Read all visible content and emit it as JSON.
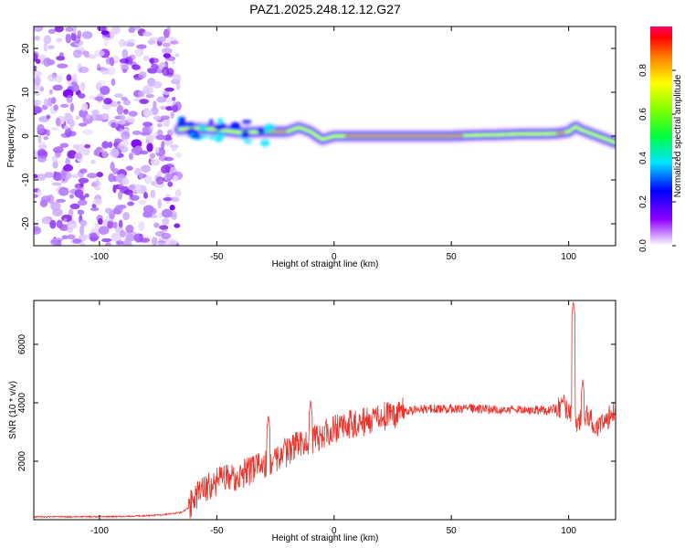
{
  "title": "PAZ1.2025.248.12.12.G27",
  "chart_data": [
    {
      "type": "heatmap",
      "title": "PAZ1.2025.248.12.12.G27",
      "xlabel": "Height of straight line (km)",
      "ylabel": "Frequency (Hz)",
      "xlim": [
        -128,
        120
      ],
      "ylim": [
        -25,
        25
      ],
      "xticks": [
        -100,
        -50,
        0,
        50,
        100
      ],
      "yticks": [
        -20,
        -10,
        0,
        10,
        20
      ],
      "noise_region_x": [
        -128,
        -66
      ],
      "signal_track": {
        "x": [
          -66,
          -60,
          -50,
          -40,
          -30,
          -20,
          -15,
          -10,
          -5,
          0,
          10,
          20,
          30,
          40,
          50,
          60,
          70,
          80,
          90,
          95,
          100,
          103,
          105,
          110,
          115,
          120
        ],
        "freq_hz": [
          1.5,
          1.8,
          1.5,
          0.8,
          1.0,
          1.0,
          2.0,
          1.0,
          -0.8,
          0,
          0,
          0,
          0,
          0,
          0,
          0.2,
          0.3,
          0.5,
          0.5,
          0.6,
          1.0,
          2.2,
          1.5,
          0.5,
          -0.5,
          -1.5
        ]
      },
      "colorbar": {
        "label": "Normalized spectral amplitude",
        "ticks": [
          0.0,
          0.2,
          0.4,
          0.6,
          0.8
        ],
        "range": [
          0,
          1
        ]
      }
    },
    {
      "type": "line",
      "xlabel": "Height of straight line (km)",
      "ylabel": "SNR (10 * v/v)",
      "xlim": [
        -128,
        120
      ],
      "ylim": [
        0,
        7500
      ],
      "xticks": [
        -100,
        -50,
        0,
        50,
        100
      ],
      "yticks": [
        2000,
        4000,
        6000
      ],
      "color": "#e8332b",
      "series": [
        {
          "name": "SNR",
          "x": [
            -128,
            -110,
            -90,
            -75,
            -70,
            -65,
            -62,
            -60,
            -55,
            -50,
            -45,
            -40,
            -35,
            -30,
            -25,
            -20,
            -15,
            -10,
            -5,
            0,
            5,
            10,
            15,
            20,
            25,
            30,
            35,
            40,
            50,
            60,
            70,
            80,
            90,
            95,
            98,
            100,
            102,
            104,
            106,
            108,
            110,
            112,
            115,
            118,
            120
          ],
          "y": [
            100,
            100,
            110,
            150,
            200,
            250,
            400,
            700,
            1100,
            1300,
            1400,
            1500,
            1700,
            1900,
            2100,
            2300,
            2600,
            2700,
            2900,
            3100,
            3200,
            3300,
            3400,
            3500,
            3600,
            3700,
            3750,
            3800,
            3800,
            3800,
            3750,
            3750,
            3750,
            3800,
            3850,
            3700,
            3500,
            3300,
            3500,
            3600,
            3400,
            3200,
            3250,
            3600,
            3800
          ]
        }
      ],
      "spikes": [
        {
          "x": -28,
          "y": 3600
        },
        {
          "x": -10,
          "y": 4100
        },
        {
          "x": -21,
          "y": 2800
        },
        {
          "x": 98,
          "y": 4300
        },
        {
          "x": 102,
          "y": 7500
        },
        {
          "x": 106,
          "y": 4800
        }
      ]
    }
  ]
}
